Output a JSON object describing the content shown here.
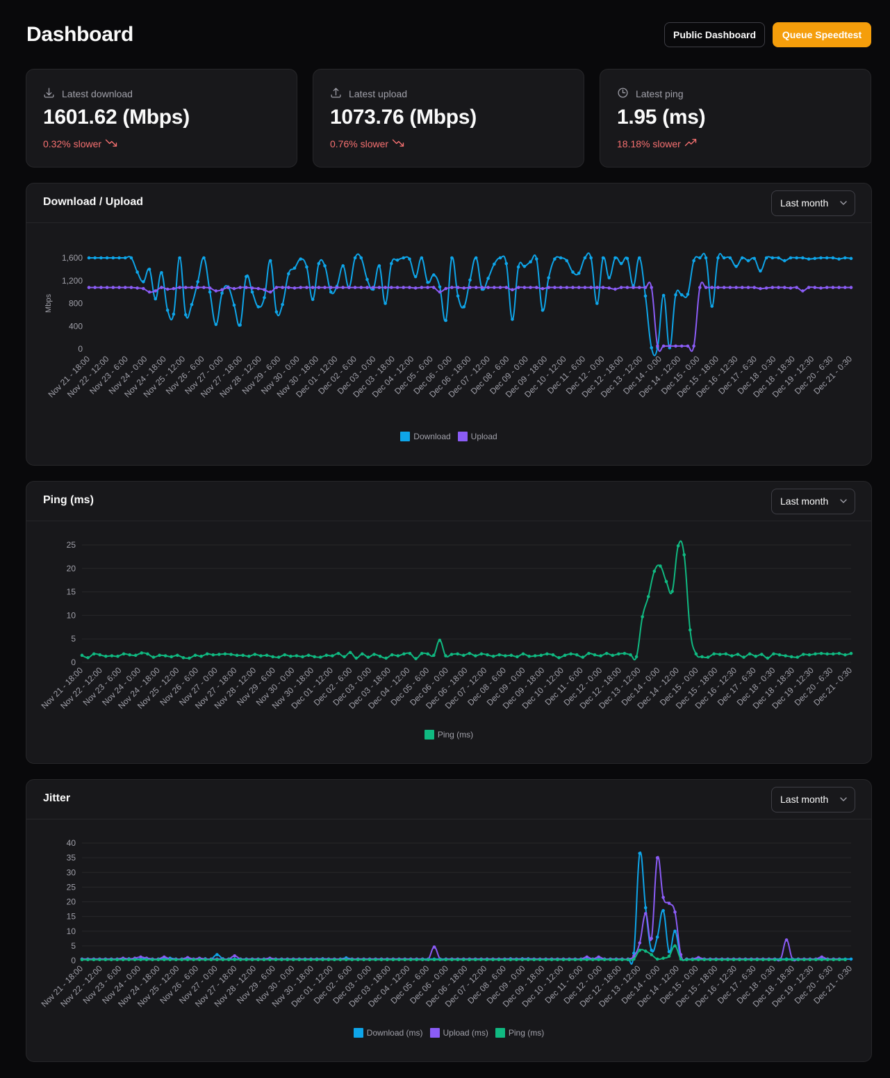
{
  "page": {
    "title": "Dashboard"
  },
  "actions": {
    "public_dashboard": "Public Dashboard",
    "queue_speedtest": "Queue Speedtest"
  },
  "stats": [
    {
      "label": "Latest download",
      "value": "1601.62 (Mbps)",
      "change": "0.32% slower",
      "icon": "download-icon",
      "trend": "trending-down-icon"
    },
    {
      "label": "Latest upload",
      "value": "1073.76 (Mbps)",
      "change": "0.76% slower",
      "icon": "upload-icon",
      "trend": "trending-down-icon"
    },
    {
      "label": "Latest ping",
      "value": "1.95 (ms)",
      "change": "18.18% slower",
      "icon": "clock-icon",
      "trend": "trending-up-icon"
    }
  ],
  "colors": {
    "download": "#0ea5e9",
    "upload": "#8b5cf6",
    "ping": "#10b981",
    "accent": "#f59e0b",
    "negative": "#f87171"
  },
  "x_labels": [
    "Nov 21 - 18:00",
    "Nov 22 - 12:00",
    "Nov 23 - 6:00",
    "Nov 24 - 0:00",
    "Nov 24 - 18:00",
    "Nov 25 - 12:00",
    "Nov 26 - 6:00",
    "Nov 27 - 0:00",
    "Nov 27 - 18:00",
    "Nov 28 - 12:00",
    "Nov 29 - 6:00",
    "Nov 30 - 0:00",
    "Nov 30 - 18:00",
    "Dec 01 - 12:00",
    "Dec 02 - 6:00",
    "Dec 03 - 0:00",
    "Dec 03 - 18:00",
    "Dec 04 - 12:00",
    "Dec 05 - 6:00",
    "Dec 06 - 0:00",
    "Dec 06 - 18:00",
    "Dec 07 - 12:00",
    "Dec 08 - 6:00",
    "Dec 09 - 0:00",
    "Dec 09 - 18:00",
    "Dec 10 - 12:00",
    "Dec 11 - 6:00",
    "Dec 12 - 0:00",
    "Dec 12 - 18:00",
    "Dec 13 - 12:00",
    "Dec 14 - 0:00",
    "Dec 14 - 12:00",
    "Dec 15 - 0:00",
    "Dec 15 - 18:00",
    "Dec 16 - 12:30",
    "Dec 17 - 6:30",
    "Dec 18 - 0:30",
    "Dec 18 - 18:30",
    "Dec 19 - 12:30",
    "Dec 20 - 6:30",
    "Dec 21 - 0:30"
  ],
  "chart_data": [
    {
      "type": "line",
      "title": "Download / Upload",
      "range_select": "Last month",
      "ylabel": "Mbps",
      "ylim": [
        0,
        1600
      ],
      "yticks": [
        0,
        400,
        800,
        1200,
        1600
      ],
      "ytick_labels": [
        "0",
        "400",
        "800",
        "1,200",
        "1,600"
      ],
      "grid": false,
      "legend": "bottom-center",
      "series": [
        {
          "name": "Download",
          "color": "#0ea5e9",
          "values": [
            1600,
            1600,
            1600,
            1600,
            1600,
            1600,
            1600,
            1600,
            1350,
            1180,
            1400,
            880,
            1340,
            680,
            610,
            1600,
            600,
            780,
            1180,
            1600,
            1000,
            430,
            980,
            1090,
            770,
            420,
            1270,
            1000,
            740,
            900,
            1550,
            650,
            780,
            1320,
            1420,
            1580,
            1440,
            870,
            1500,
            1460,
            1000,
            1100,
            1460,
            1080,
            1600,
            1600,
            1220,
            1050,
            1460,
            800,
            1500,
            1560,
            1600,
            1580,
            1270,
            1600,
            1170,
            1300,
            1090,
            500,
            1600,
            930,
            740,
            1210,
            1600,
            1050,
            1240,
            1490,
            1600,
            1500,
            520,
            1440,
            1450,
            1530,
            1580,
            680,
            1250,
            1580,
            1600,
            1550,
            1350,
            1330,
            1600,
            1600,
            800,
            1600,
            1250,
            1600,
            1500,
            1590,
            1110,
            1600,
            930,
            20,
            20,
            940,
            20,
            950,
            950,
            960,
            1550,
            1600,
            1600,
            750,
            1600,
            1600,
            1600,
            1450,
            1600,
            1550,
            1590,
            1370,
            1600,
            1600,
            1600,
            1550,
            1600,
            1600,
            1600,
            1580,
            1590,
            1600,
            1600,
            1600,
            1580,
            1600,
            1590
          ]
        },
        {
          "name": "Upload",
          "color": "#8b5cf6",
          "values": [
            1080,
            1080,
            1080,
            1080,
            1080,
            1080,
            1080,
            1080,
            1070,
            1060,
            1000,
            1020,
            1080,
            1050,
            1060,
            1080,
            1080,
            1080,
            1080,
            1080,
            1070,
            1020,
            1040,
            1080,
            1060,
            1080,
            1080,
            1070,
            1060,
            1040,
            1000,
            1080,
            1080,
            1080,
            1070,
            1080,
            1080,
            1080,
            1080,
            1080,
            1080,
            1080,
            1080,
            1080,
            1080,
            1080,
            1080,
            1080,
            1080,
            1080,
            1080,
            1080,
            1080,
            1080,
            1070,
            1080,
            1080,
            1080,
            1000,
            1060,
            1080,
            1080,
            1070,
            1080,
            1080,
            1080,
            1080,
            1080,
            1080,
            1080,
            1040,
            1080,
            1080,
            1080,
            1080,
            1060,
            1080,
            1080,
            1080,
            1080,
            1080,
            1080,
            1080,
            1080,
            1080,
            1080,
            1070,
            1050,
            1080,
            1080,
            1080,
            1080,
            1080,
            1080,
            50,
            50,
            50,
            50,
            50,
            50,
            50,
            1080,
            1080,
            1080,
            1080,
            1080,
            1080,
            1080,
            1080,
            1080,
            1080,
            1060,
            1070,
            1080,
            1080,
            1080,
            1070,
            1080,
            1020,
            1080,
            1080,
            1070,
            1080,
            1080,
            1080,
            1080,
            1080
          ]
        }
      ]
    },
    {
      "type": "line",
      "title": "Ping (ms)",
      "range_select": "Last month",
      "ylim": [
        0,
        25
      ],
      "yticks": [
        0,
        5,
        10,
        15,
        20,
        25
      ],
      "ytick_labels": [
        "0",
        "5",
        "10",
        "15",
        "20",
        "25"
      ],
      "grid": true,
      "legend": "bottom-center",
      "series": [
        {
          "name": "Ping (ms)",
          "color": "#10b981",
          "values": [
            1.5,
            1,
            1.8,
            1.6,
            1.3,
            1.4,
            1.3,
            1.8,
            1.6,
            1.5,
            2,
            1.8,
            1.1,
            1.5,
            1.4,
            1.2,
            1.5,
            1,
            0.9,
            1.5,
            1.3,
            1.8,
            1.6,
            1.7,
            1.8,
            1.7,
            1.5,
            1.5,
            1.3,
            1.7,
            1.4,
            1.5,
            1.2,
            1.1,
            1.6,
            1.3,
            1.4,
            1.2,
            1.5,
            1.2,
            1.1,
            1.5,
            1.4,
            1.9,
            1.2,
            2.1,
            0.9,
            1.8,
            1.1,
            1.7,
            1.3,
            0.9,
            1.6,
            1.4,
            1.8,
            1.9,
            0.8,
            1.9,
            1.8,
            1.5,
            4.7,
            1.4,
            1.7,
            1.8,
            1.5,
            1.9,
            1.4,
            1.8,
            1.6,
            1.3,
            1.6,
            1.4,
            1.5,
            1.2,
            1.8,
            1.3,
            1.4,
            1.5,
            1.8,
            1.6,
            1,
            1.5,
            1.8,
            1.6,
            1.1,
            1.9,
            1.6,
            1.4,
            1.9,
            1.5,
            1.8,
            1.9,
            1.6,
            1.2,
            9.7,
            14,
            19.4,
            20.5,
            17.2,
            15.1,
            24.8,
            22.9,
            6.9,
            1.8,
            1.2,
            1.1,
            1.8,
            1.7,
            1.8,
            1.4,
            1.7,
            1.1,
            1.8,
            1.3,
            1.7,
            0.9,
            1.8,
            1.6,
            1.4,
            1.2,
            1.1,
            1.7,
            1.6,
            1.8,
            1.9,
            1.8,
            1.8,
            1.9,
            1.6,
            1.9
          ]
        }
      ]
    },
    {
      "type": "line",
      "title": "Jitter",
      "range_select": "Last month",
      "ylim": [
        0,
        40
      ],
      "yticks": [
        0,
        5,
        10,
        15,
        20,
        25,
        30,
        35,
        40
      ],
      "ytick_labels": [
        "0",
        "5",
        "10",
        "15",
        "20",
        "25",
        "30",
        "35",
        "40"
      ],
      "grid": true,
      "legend": "bottom-center",
      "series": [
        {
          "name": "Download (ms)",
          "color": "#0ea5e9",
          "values": [
            0.5,
            0.5,
            0.5,
            0.5,
            0.5,
            0.5,
            0.5,
            0.6,
            0.6,
            0.5,
            0.5,
            0.8,
            0.5,
            0.5,
            0.6,
            0.8,
            0.5,
            0.5,
            0.6,
            0.5,
            0.5,
            0.6,
            0.5,
            2,
            0.6,
            0.5,
            0.5,
            0.5,
            0.5,
            0.5,
            0.5,
            0.5,
            0.5,
            0.5,
            0.5,
            0.5,
            0.5,
            0.5,
            0.5,
            0.5,
            0.5,
            0.6,
            0.5,
            0.5,
            0.5,
            0.9,
            0.5,
            0.5,
            0.5,
            0.5,
            0.5,
            0.5,
            0.5,
            0.5,
            0.5,
            0.5,
            0.5,
            0.5,
            0.5,
            0.5,
            0.5,
            0.5,
            0.5,
            0.5,
            0.5,
            0.5,
            0.5,
            0.5,
            0.5,
            0.5,
            0.5,
            0.5,
            0.5,
            0.6,
            0.5,
            0.6,
            0.6,
            0.5,
            0.5,
            0.5,
            0.5,
            0.5,
            0.5,
            0.5,
            0.5,
            0.5,
            0.5,
            0.5,
            0.5,
            0.5,
            0.5,
            0.5,
            0.5,
            0.5,
            2.5,
            36.5,
            18,
            3.5,
            8,
            17,
            3,
            10,
            1,
            0.5,
            0.5,
            0.5,
            0.5,
            0.5,
            0.5,
            0.5,
            0.5,
            0.5,
            0.5,
            0.5,
            0.5,
            0.5,
            0.5,
            0.5,
            0.5,
            0.5,
            0.5,
            0.5,
            0.5,
            0.5,
            0.5,
            0.5,
            0.5,
            0.5,
            0.5,
            0.5,
            0.5,
            0.5
          ]
        },
        {
          "name": "Upload (ms)",
          "color": "#8b5cf6",
          "values": [
            0.5,
            0.5,
            0.5,
            0.5,
            0.5,
            0.5,
            0.5,
            0.8,
            0.5,
            0.8,
            1.2,
            0.8,
            0.5,
            0.5,
            1.2,
            0.5,
            0.5,
            0.5,
            1,
            0.5,
            0.8,
            0.5,
            0.5,
            0.5,
            0.5,
            0.5,
            1.6,
            0.5,
            0.5,
            0.5,
            0.5,
            0.5,
            0.8,
            0.5,
            0.5,
            0.5,
            0.5,
            0.5,
            0.5,
            0.5,
            0.5,
            0.5,
            0.5,
            0.5,
            0.5,
            0.5,
            0.5,
            0.5,
            0.5,
            0.5,
            0.5,
            0.5,
            0.5,
            0.5,
            0.5,
            0.5,
            0.5,
            0.5,
            0.5,
            0.5,
            4.6,
            0.5,
            0.5,
            0.5,
            0.5,
            0.5,
            0.5,
            0.5,
            0.5,
            0.5,
            0.5,
            0.5,
            0.5,
            0.5,
            0.5,
            0.5,
            0.5,
            0.5,
            0.5,
            0.5,
            0.5,
            0.5,
            0.5,
            0.5,
            0.5,
            0.5,
            1.2,
            0.5,
            1.2,
            0.5,
            0.5,
            0.5,
            0.5,
            0.5,
            1.5,
            6,
            16,
            7.5,
            35,
            21.5,
            19.5,
            16.5,
            2,
            0.5,
            0.5,
            1,
            0.5,
            0.5,
            0.5,
            0.5,
            0.5,
            0.5,
            0.5,
            0.5,
            0.5,
            0.5,
            0.5,
            0.5,
            0.5,
            0.5,
            7,
            0.5,
            0.5,
            0.5,
            0.5,
            0.5,
            1.2,
            0.5,
            0.5,
            0.5
          ]
        },
        {
          "name": "Ping (ms)",
          "color": "#10b981",
          "values": [
            0.3,
            0.3,
            0.3,
            0.3,
            0.3,
            0.3,
            0.3,
            0.3,
            0.3,
            0.3,
            0.3,
            0.3,
            0.3,
            0.3,
            0.3,
            0.3,
            0.3,
            0.3,
            0.3,
            0.3,
            0.3,
            0.3,
            0.3,
            0.3,
            0.3,
            0.3,
            0.3,
            0.3,
            0.3,
            0.3,
            0.3,
            0.3,
            0.3,
            0.3,
            0.3,
            0.3,
            0.3,
            0.3,
            0.3,
            0.3,
            0.3,
            0.3,
            0.3,
            0.3,
            0.3,
            0.3,
            0.3,
            0.3,
            0.3,
            0.3,
            0.3,
            0.3,
            0.3,
            0.3,
            0.3,
            0.3,
            0.3,
            0.3,
            0.3,
            0.3,
            0.3,
            0.3,
            0.3,
            0.3,
            0.3,
            0.3,
            0.3,
            0.3,
            0.3,
            0.3,
            0.3,
            0.3,
            0.3,
            0.3,
            0.3,
            0.3,
            0.3,
            0.3,
            0.3,
            0.3,
            0.3,
            0.3,
            0.3,
            0.3,
            0.3,
            0.3,
            0.3,
            0.3,
            0.3,
            0.3,
            0.3,
            0.3,
            0.3,
            0.3,
            0.5,
            3.5,
            3.2,
            2,
            0.5,
            0.8,
            1.5,
            5,
            0.5,
            0.3,
            0.3,
            0.3,
            0.3,
            0.3,
            0.3,
            0.3,
            0.3,
            0.3,
            0.3,
            0.3,
            0.3,
            0.3,
            0.3,
            0.3,
            0.3,
            0.3,
            0.3,
            0.3,
            0.3,
            0.3,
            0.3,
            0.3,
            0.3,
            0.3,
            0.3,
            0.3,
            0.3
          ]
        }
      ]
    }
  ]
}
